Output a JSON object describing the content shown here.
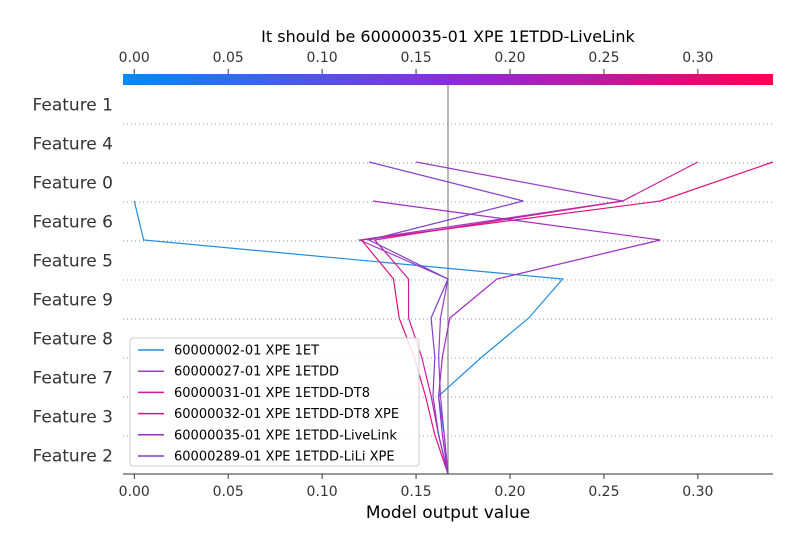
{
  "chart_data": {
    "type": "line",
    "title": "It should be 60000035-01 XPE 1ETDD-LiveLink",
    "xlabel": "Model output value",
    "xlim": [
      -0.006,
      0.34
    ],
    "x_ticks": [
      "0.00",
      "0.05",
      "0.10",
      "0.15",
      "0.20",
      "0.25",
      "0.30"
    ],
    "x_tick_values": [
      0.0,
      0.05,
      0.1,
      0.15,
      0.2,
      0.25,
      0.3
    ],
    "base_value": 0.167,
    "features": [
      "Feature 1",
      "Feature 4",
      "Feature 0",
      "Feature 6",
      "Feature 5",
      "Feature 9",
      "Feature 8",
      "Feature 7",
      "Feature 3",
      "Feature 2"
    ],
    "colorbar": {
      "from": "#008bfb",
      "mid": "#8a2be2",
      "to": "#ff0051"
    },
    "series": [
      {
        "name": "60000002-01 XPE 1ET",
        "color": "#1f8ce0",
        "values": [
          0.167,
          0.165,
          0.162,
          0.185,
          0.21,
          0.228,
          0.005,
          0.0
        ]
      },
      {
        "name": "60000027-01 XPE 1ETDD",
        "color": "#9b3ec4",
        "values": [
          0.167,
          0.165,
          0.163,
          0.162,
          0.163,
          0.167,
          0.12,
          0.26,
          0.15
        ]
      },
      {
        "name": "60000031-01 XPE 1ETDD-DT8",
        "color": "#d01a9e",
        "values": [
          0.167,
          0.162,
          0.158,
          0.153,
          0.146,
          0.146,
          0.128,
          0.26,
          0.3
        ]
      },
      {
        "name": "60000032-01 XPE 1ETDD-DT8 XPE",
        "color": "#e0127f",
        "values": [
          0.167,
          0.16,
          0.155,
          0.149,
          0.141,
          0.138,
          0.121,
          0.28,
          0.34
        ]
      },
      {
        "name": "60000035-01 XPE 1ETDD-LiveLink",
        "color": "#a12bc4",
        "values": [
          0.167,
          0.164,
          0.162,
          0.164,
          0.168,
          0.193,
          0.28,
          0.127
        ]
      },
      {
        "name": "60000289-01 XPE 1ETDD-LiLi XPE",
        "color": "#7e3fd0",
        "values": [
          0.167,
          0.162,
          0.159,
          0.16,
          0.158,
          0.167,
          0.125,
          0.207,
          0.125
        ]
      }
    ]
  }
}
